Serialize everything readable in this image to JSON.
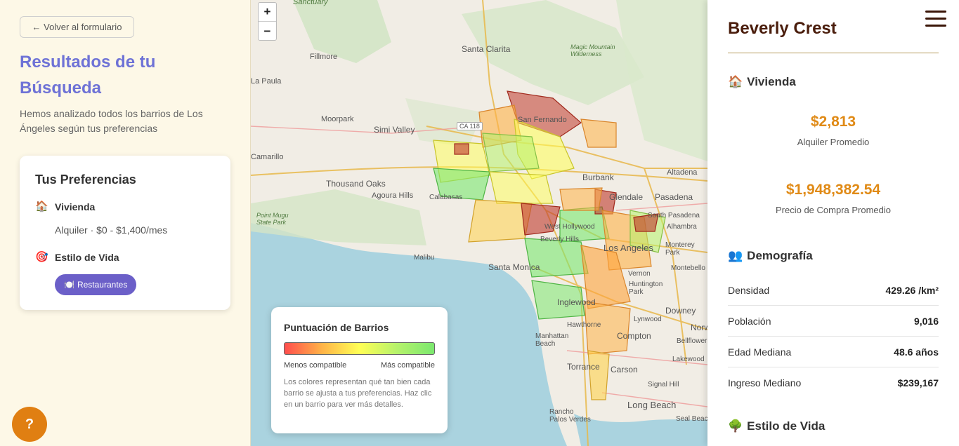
{
  "left_panel": {
    "back_label": "← Volver al formulario",
    "title": "Resultados de tu Búsqueda",
    "subtitle": "Hemos analizado todos los barrios de Los Ángeles según tus preferencias",
    "prefs": {
      "title": "Tus Preferencias",
      "housing_icon": "house-icon",
      "housing_label": "Vivienda",
      "housing_detail": "Alquiler · $0 - $1,400/mes",
      "lifestyle_icon": "target-icon",
      "lifestyle_label": "Estilo de Vida",
      "chip_icon": "plate-icon",
      "chip_label": "Restaurantes"
    },
    "help_label": "?"
  },
  "map": {
    "zoom_in": "+",
    "zoom_out": "−",
    "labels": [
      "Sanctuary",
      "Fillmore",
      "Santa Clarita",
      "Magic Mountain Wilderness",
      "La Paula",
      "Moorpark",
      "Simi Valley",
      "San Fernando",
      "CA 118",
      "Camarillo",
      "Thousand Oaks",
      "Burbank",
      "Altadena",
      "Agoura Hills",
      "Calabasas",
      "Glendale",
      "Pasadena",
      "Point Mugu State Park",
      "West Hollywood",
      "South Pasadena",
      "Alhambra",
      "Beverly Hills",
      "Los Angeles",
      "Monterey Park",
      "Malibu",
      "Santa Monica",
      "Montebello",
      "Inglewood",
      "Huntington Park",
      "Downey",
      "Lynwood",
      "Norwalk",
      "Hawthorne",
      "Manhattan Beach",
      "Compton",
      "Bellflower",
      "Torrance",
      "Carson",
      "Lakewood",
      "Rancho Palos Verdes",
      "Signal Hill",
      "Long Beach",
      "Seal Beach",
      "Vernon"
    ],
    "legend": {
      "title": "Puntuación de Barrios",
      "low_label": "Menos compatible",
      "high_label": "Más compatible",
      "note": "Los colores representan qué tan bien cada barrio se ajusta a tus preferencias. Haz clic en un barrio para ver más detalles.",
      "colors": [
        "#ff4d4d",
        "#ffb347",
        "#ffff55",
        "#b6f26b",
        "#7be86f"
      ]
    }
  },
  "right_panel": {
    "name": "Beverly Crest",
    "housing": {
      "icon": "house-icon",
      "title": "Vivienda",
      "rent_value": "$2,813",
      "rent_label": "Alquiler Promedio",
      "buy_value": "$1,948,382.54",
      "buy_label": "Precio de Compra Promedio"
    },
    "demographics": {
      "icon": "people-icon",
      "title": "Demografía",
      "rows": [
        {
          "label": "Densidad",
          "value": "429.26 /km²"
        },
        {
          "label": "Población",
          "value": "9,016"
        },
        {
          "label": "Edad Mediana",
          "value": "48.6 años"
        },
        {
          "label": "Ingreso Mediano",
          "value": "$239,167"
        }
      ]
    },
    "lifestyle": {
      "icon": "tree-icon",
      "title": "Estilo de Vida"
    }
  },
  "colors": {
    "accent_title": "#6e72d6",
    "chip": "#6b5fc8",
    "help": "#e07f12",
    "value_orange": "#e08a16",
    "heading_brown": "#4a1d0c"
  }
}
